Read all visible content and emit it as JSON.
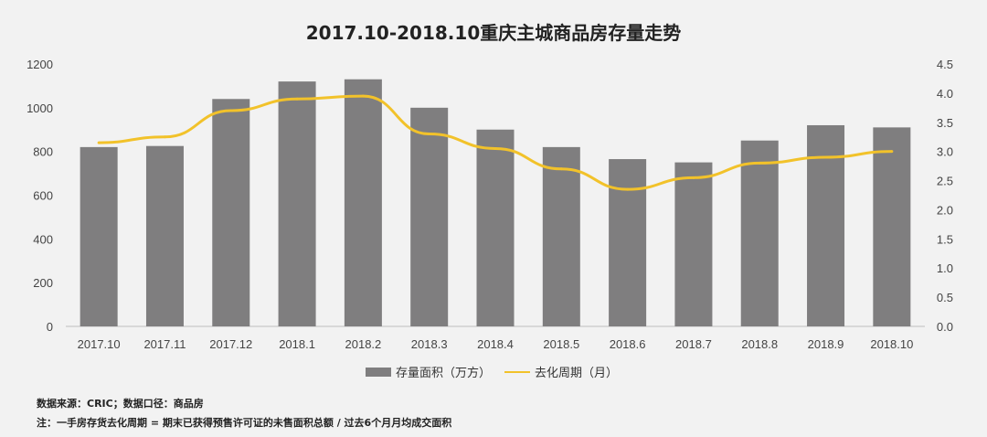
{
  "title": "2017.10-2018.10重庆主城商品房存量走势",
  "chart_data": {
    "type": "bar",
    "title": "2017.10-2018.10重庆主城商品房存量走势",
    "categories": [
      "2017.10",
      "2017.11",
      "2017.12",
      "2018.1",
      "2018.2",
      "2018.3",
      "2018.4",
      "2018.5",
      "2018.6",
      "2018.7",
      "2018.8",
      "2018.9",
      "2018.10"
    ],
    "series": [
      {
        "name": "存量面积（万方）",
        "type": "bar",
        "axis": "left",
        "color": "#7f7e7f",
        "values": [
          820,
          825,
          1040,
          1120,
          1130,
          1000,
          900,
          820,
          765,
          750,
          850,
          920,
          910
        ]
      },
      {
        "name": "去化周期（月）",
        "type": "line",
        "axis": "right",
        "color": "#f2c22a",
        "values": [
          3.15,
          3.25,
          3.7,
          3.9,
          3.95,
          3.3,
          3.05,
          2.7,
          2.35,
          2.55,
          2.8,
          2.9,
          3.0
        ]
      }
    ],
    "y_left": {
      "ylim": [
        0,
        1200
      ],
      "ticks": [
        "0",
        "200",
        "400",
        "600",
        "800",
        "1000",
        "1200"
      ]
    },
    "y_right": {
      "ylim": [
        0,
        4.5
      ],
      "ticks": [
        "0.0",
        "0.5",
        "1.0",
        "1.5",
        "2.0",
        "2.5",
        "3.0",
        "3.5",
        "4.0",
        "4.5"
      ]
    },
    "grid": false,
    "legend_position": "bottom"
  },
  "legend": {
    "bar_label": "存量面积（万方）",
    "line_label": "去化周期（月）"
  },
  "notes": {
    "source": "数据来源：CRIC；数据口径：商品房",
    "definition": "注：一手房存货去化周期 = 期末已获得预售许可证的未售面积总额 / 过去6个月月均成交面积"
  }
}
